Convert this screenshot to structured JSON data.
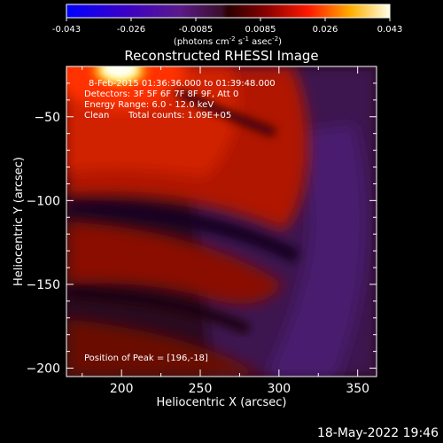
{
  "chart_data": {
    "type": "heatmap",
    "title": "Reconstructed RHESSI Image",
    "xlabel": "Heliocentric X (arcsec)",
    "ylabel": "Heliocentric Y (arcsec)",
    "xlim": [
      165,
      362
    ],
    "ylim": [
      -205,
      -20
    ],
    "xticks": [
      200,
      250,
      300,
      350
    ],
    "yticks": [
      -50,
      -100,
      -150,
      -200
    ],
    "colorbar": {
      "range": [
        -0.043,
        0.043
      ],
      "ticks": [
        "-0.043",
        "-0.026",
        "-0.0085",
        "0.0085",
        "0.026",
        "0.043"
      ],
      "unit_main": "(photons cm",
      "unit_sup1": "-2",
      "unit_mid": " s",
      "unit_sup2": "-1",
      "unit_end": " asec",
      "unit_sup3": "-2",
      "unit_close": ")"
    },
    "annotations": {
      "time_range": "8-Feb-2015 01:36:36.000 to 01:39:48.000",
      "detectors": "Detectors: 3F 5F 6F 7F 8F 9F, Att 0",
      "energy": "Energy Range: 6.0 - 12.0 keV",
      "clean": "Clean",
      "counts": "Total counts: 1.09E+05",
      "peak": "Position of Peak = [196,-18]"
    },
    "peak": [
      196,
      -18
    ],
    "structure": [
      {
        "region": "bright core near peak",
        "x": 196,
        "y": -18,
        "value": 0.043
      },
      {
        "region": "upper red arc",
        "y_range": [
          -20,
          -95
        ],
        "value": 0.02
      },
      {
        "region": "dark ring",
        "y_range": [
          -100,
          -110
        ],
        "value": -0.003
      },
      {
        "region": "middle red arc",
        "y_range": [
          -115,
          -160
        ],
        "value": 0.012
      },
      {
        "region": "lower red arc",
        "y_range": [
          -165,
          -205
        ],
        "value": 0.009
      },
      {
        "region": "violet diagonal band",
        "x_range": [
          250,
          362
        ],
        "value": -0.01
      }
    ]
  },
  "footer": {
    "timestamp": "18-May-2022 19:46"
  }
}
